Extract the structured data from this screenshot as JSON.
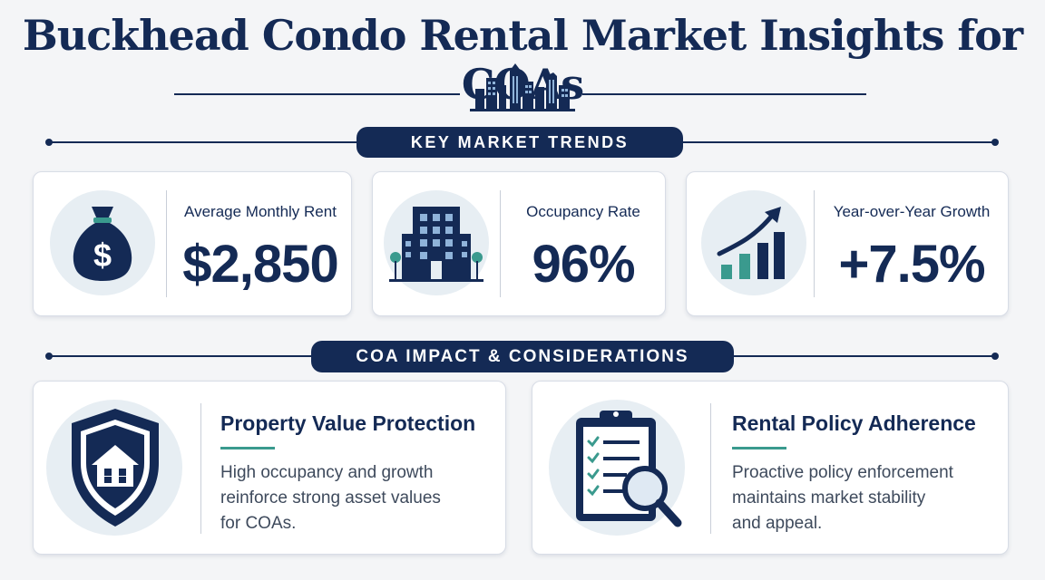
{
  "header": {
    "title": "Buckhead Condo Rental Market Insights for COAs"
  },
  "sections": {
    "trends_label": "KEY MARKET TRENDS",
    "impact_label": "COA IMPACT & CONSIDERATIONS"
  },
  "stats": [
    {
      "label": "Average Monthly Rent",
      "value": "$2,850",
      "icon": "money-bag-icon"
    },
    {
      "label": "Occupancy Rate",
      "value": "96%",
      "icon": "building-icon"
    },
    {
      "label": "Year-over-Year Growth",
      "value": "+7.5%",
      "icon": "growth-chart-icon"
    }
  ],
  "impacts": [
    {
      "title": "Property Value Protection",
      "description_lines": [
        "High occupancy and growth",
        "reinforce strong asset values",
        "for COAs."
      ],
      "icon": "shield-house-icon"
    },
    {
      "title": "Rental Policy Adherence",
      "description_lines": [
        "Proactive policy enforcement",
        "maintains market stability",
        "and appeal."
      ],
      "icon": "clipboard-search-icon"
    }
  ],
  "colors": {
    "navy": "#142a55",
    "teal": "#3a9a8e",
    "icon_bg": "#e7eef3"
  }
}
